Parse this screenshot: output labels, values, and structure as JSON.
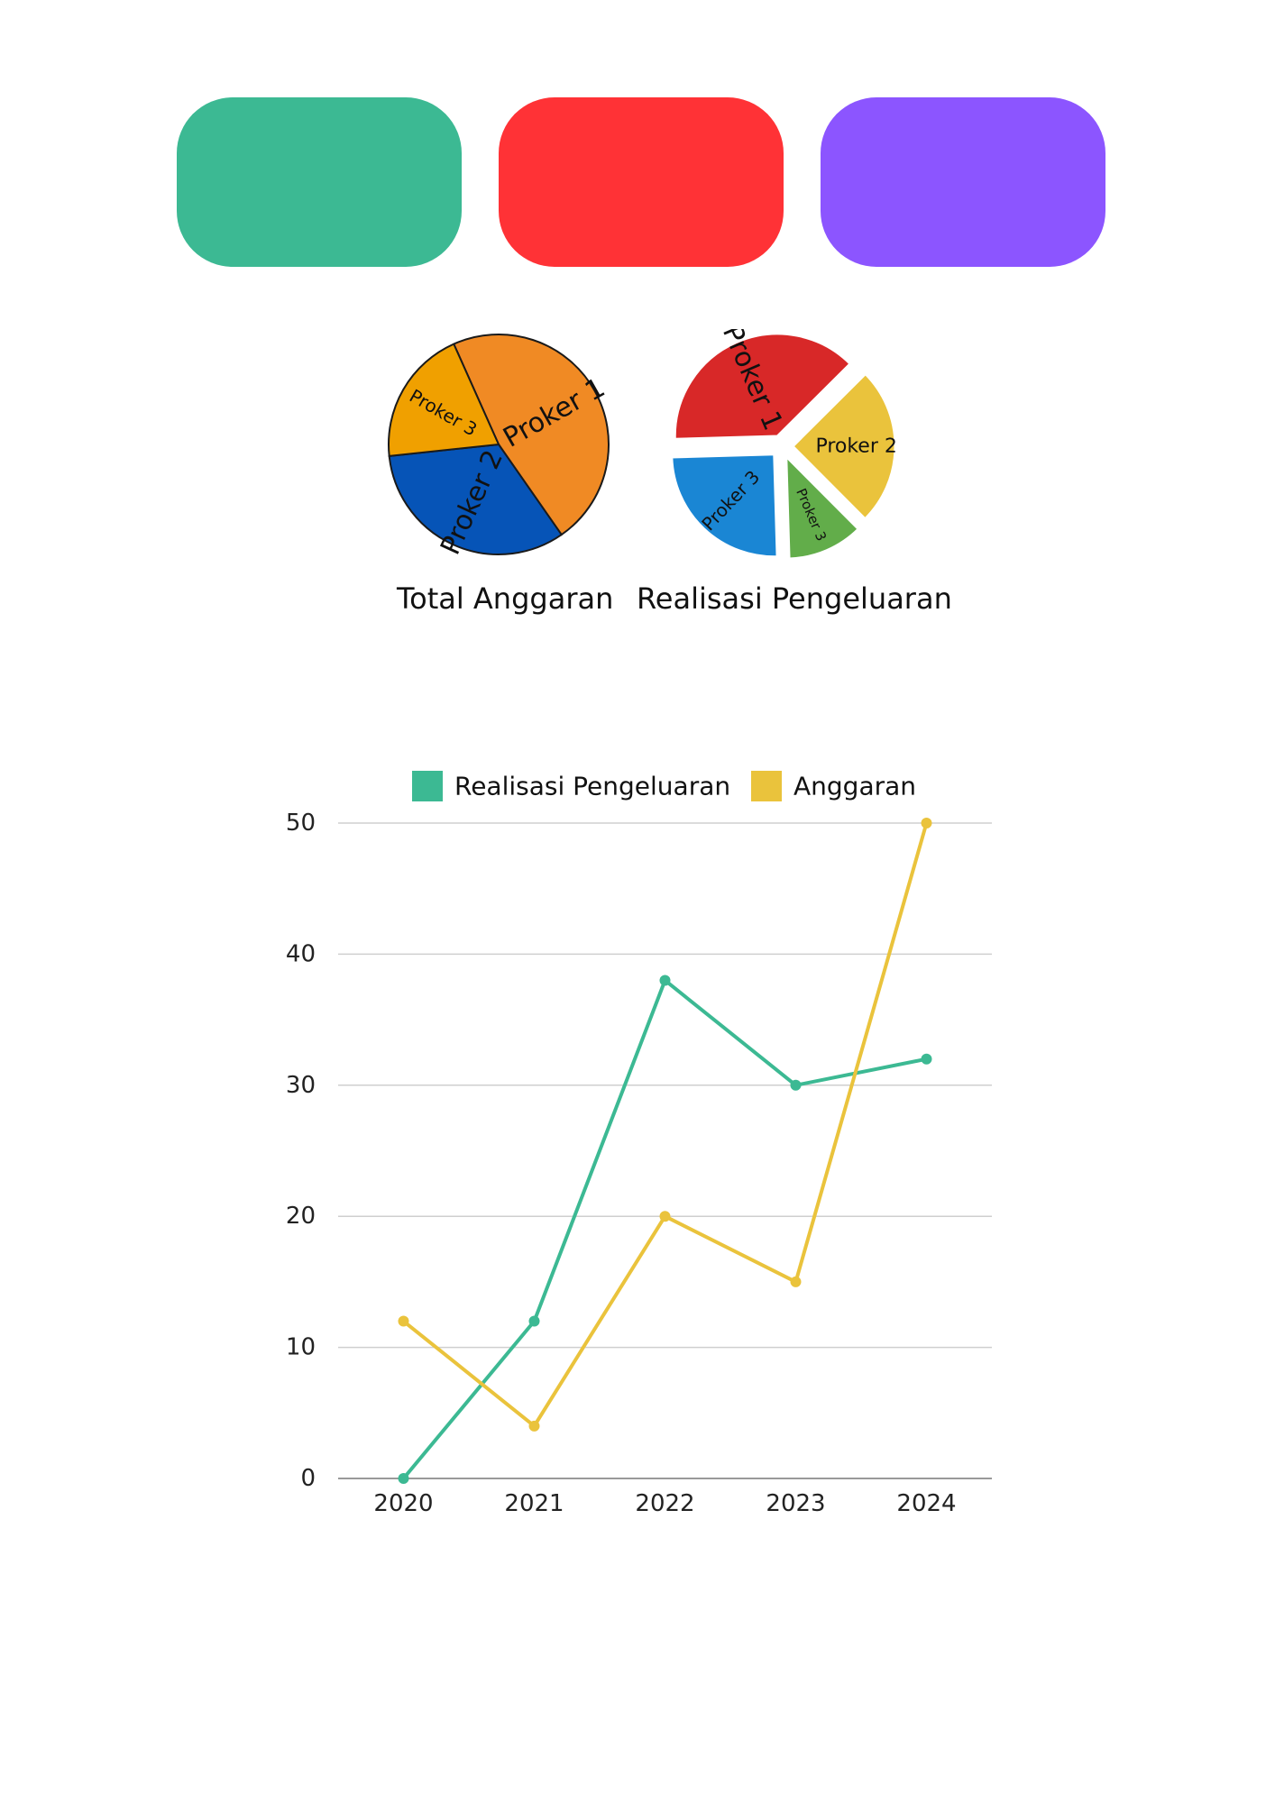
{
  "cards": [
    {
      "color": "#3cb993"
    },
    {
      "color": "#ff3236"
    },
    {
      "color": "#8c55ff"
    }
  ],
  "chart_data": [
    {
      "type": "pie",
      "title": "Total Anggaran",
      "slices": [
        {
          "label": "Proker 1",
          "value": 47,
          "color": "#f08a24"
        },
        {
          "label": "Proker 2",
          "value": 33,
          "color": "#0654b7"
        },
        {
          "label": "Proker 3",
          "value": 20,
          "color": "#f0a000"
        }
      ]
    },
    {
      "type": "pie",
      "title": "Realisasi Pengeluaran",
      "slices": [
        {
          "label": "Proker 1",
          "value": 38,
          "color": "#d82828"
        },
        {
          "label": "Proker 2",
          "value": 25,
          "color": "#eac33c"
        },
        {
          "label": "Proker 3",
          "value": 12,
          "color": "#62ad4a"
        },
        {
          "label": "Proker 3",
          "value": 25,
          "color": "#1a86d4"
        }
      ]
    },
    {
      "type": "line",
      "x": [
        "2020",
        "2021",
        "2022",
        "2023",
        "2024"
      ],
      "series": [
        {
          "name": "Realisasi Pengeluaran",
          "color": "#3cb993",
          "values": [
            0,
            12,
            38,
            30,
            32
          ]
        },
        {
          "name": "Anggaran",
          "color": "#eac33c",
          "values": [
            12,
            4,
            20,
            15,
            50
          ]
        }
      ],
      "ylim": [
        0,
        50
      ],
      "yticks": [
        "0",
        "10",
        "20",
        "30",
        "40",
        "50"
      ],
      "grid": true,
      "legend": "top"
    }
  ]
}
